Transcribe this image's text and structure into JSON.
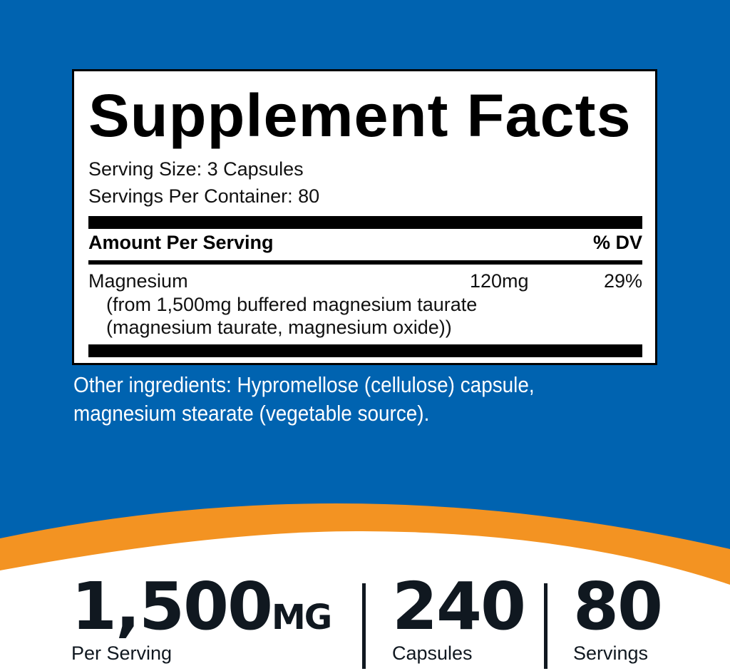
{
  "colors": {
    "background": "#0063b0",
    "accent": "#f39322",
    "text_dark": "#101820"
  },
  "label": {
    "title": "Supplement Facts",
    "serving_size": "Serving Size: 3 Capsules",
    "servings_per_container": "Servings Per Container: 80",
    "amount_header": "Amount Per Serving",
    "dv_header": "% DV",
    "ingredient": {
      "name": "Magnesium",
      "amount": "120mg",
      "dv": "29%",
      "source_line1": "(from 1,500mg buffered magnesium taurate",
      "source_line2": "(magnesium taurate, magnesium oxide))"
    }
  },
  "other_ingredients": "Other ingredients: Hypromellose (cellulose) capsule, magnesium stearate (vegetable source).",
  "stats": [
    {
      "value": "1,500",
      "unit": "MG",
      "caption": "Per Serving"
    },
    {
      "value": "240",
      "caption": "Capsules"
    },
    {
      "value": "80",
      "caption": "Servings"
    }
  ]
}
